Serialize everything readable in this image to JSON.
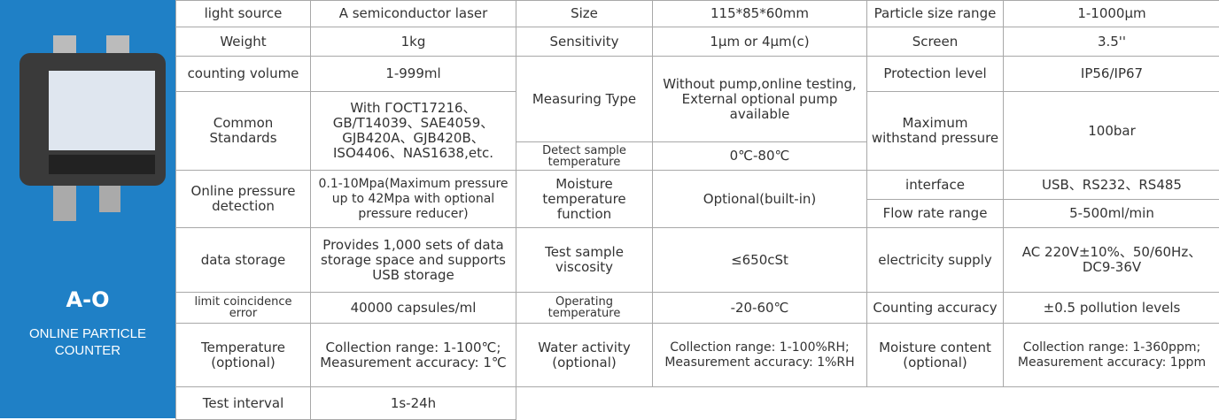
{
  "product": {
    "name": "A-O",
    "subtitle": "ONLINE PARTICLE COUNTER"
  },
  "cells": [
    "light source",
    "A semiconductor laser",
    "Size",
    "115*85*60mm",
    "Particle size range",
    "1-1000μm",
    "Weight",
    "1kg",
    "Sensitivity",
    "1μm or 4μm(c)",
    "Screen",
    "3.5''",
    "counting volume",
    "1-999ml",
    "Measuring Type",
    "Without pump,online testing, External optional pump available",
    "Protection level",
    "IP56/IP67",
    "Common Standards",
    "With ГОСТ17216、GB/T14039、SAE4059、GJB420A、GJB420B、ISO4406、NAS1638,etc.",
    "Maximum withstand pressure",
    "100bar",
    "Detect sample temperature",
    "0℃-80℃",
    "Online pressure detection",
    "0.1-10Mpa(Maximum pressure up to 42Mpa with optional pressure reducer)",
    "Moisture temperature function",
    "Optional(built-in)",
    "interface",
    "USB、RS232、RS485",
    "Flow rate range",
    "5-500ml/min",
    "data storage",
    "Provides 1,000 sets of data storage space and supports USB storage",
    "Test sample viscosity",
    "≤650cSt",
    "electricity supply",
    "AC 220V±10%、50/60Hz、DC9-36V",
    "limit coincidence error",
    "40000 capsules/ml",
    "Operating temperature",
    "-20-60℃",
    "Counting accuracy",
    "±0.5 pollution levels",
    "Temperature (optional)",
    "Collection range: 1-100℃; Measurement accuracy: 1℃",
    "Water activity (optional)",
    "Collection range: 1-100%RH; Measurement accuracy: 1%RH",
    "Moisture content (optional)",
    "Collection range: 1-360ppm; Measurement accuracy: 1ppm",
    "Test interval",
    "1s-24h"
  ]
}
